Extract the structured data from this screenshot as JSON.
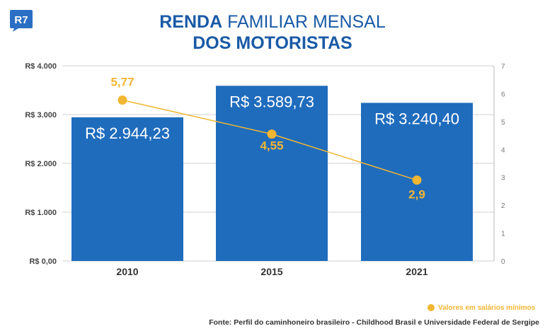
{
  "brand": {
    "logo_text": "R7",
    "logo_color": "#2a6fc4"
  },
  "title": {
    "bold_part": "RENDA",
    "light_part": "FAMILIAR MENSAL",
    "line2": "DOS MOTORISTAS"
  },
  "chart_data": {
    "type": "bar",
    "categories": [
      "2010",
      "2015",
      "2021"
    ],
    "series": [
      {
        "type": "bar",
        "axis": "left",
        "values": [
          2944.23,
          3589.73,
          3240.4
        ],
        "labels": [
          "R$ 2.944,23",
          "R$ 3.589,73",
          "R$ 3.240,40"
        ],
        "color": "#1f6cbd"
      },
      {
        "name": "Valores em salários mínimos",
        "type": "line",
        "axis": "right",
        "values": [
          5.77,
          4.55,
          2.9
        ],
        "labels": [
          "5,77",
          "4,55",
          "2,9"
        ],
        "color": "#f2b632"
      }
    ],
    "y_left": {
      "min": 0,
      "max": 4000,
      "ticks": [
        0,
        1000,
        2000,
        3000,
        4000
      ],
      "tick_labels": [
        "R$ 0,00",
        "R$ 1.000",
        "R$ 2.000",
        "R$ 3.000",
        "R$ 4.000"
      ]
    },
    "y_right": {
      "min": 0,
      "max": 7,
      "ticks": [
        0,
        1,
        2,
        3,
        4,
        5,
        6,
        7
      ],
      "tick_labels": [
        "0",
        "1",
        "2",
        "3",
        "4",
        "5",
        "6",
        "7"
      ]
    },
    "grid": true,
    "legend": "bottom-right"
  },
  "legend": {
    "label": "Valores em salários mínimos"
  },
  "source": "Fonte: Perfil do caminhoneiro brasileiro - Childhood Brasil e Universidade Federal de Sergipe"
}
